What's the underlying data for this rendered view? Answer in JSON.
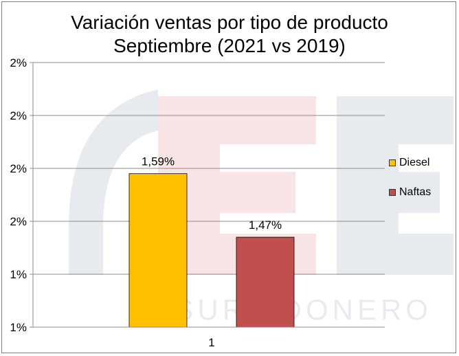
{
  "chart_data": {
    "type": "bar",
    "title": [
      "Variación ventas por tipo de producto",
      "Septiembre (2021 vs 2019)"
    ],
    "categories": [
      "1"
    ],
    "series": [
      {
        "name": "Diesel",
        "values": [
          1.59
        ],
        "color": "#ffc000",
        "label": "1,59%"
      },
      {
        "name": "Naftas",
        "values": [
          1.47
        ],
        "color": "#c0504d",
        "label": "1,47%"
      }
    ],
    "ylim": [
      1.3,
      1.8
    ],
    "yticks": [
      1.3,
      1.4,
      1.5,
      1.6,
      1.7,
      1.8
    ],
    "ytick_labels": [
      "1%",
      "1%",
      "2%",
      "2%",
      "2%",
      "2%"
    ],
    "grid": true,
    "legend_position": "right",
    "watermark": "ELSURTIDONERO"
  }
}
